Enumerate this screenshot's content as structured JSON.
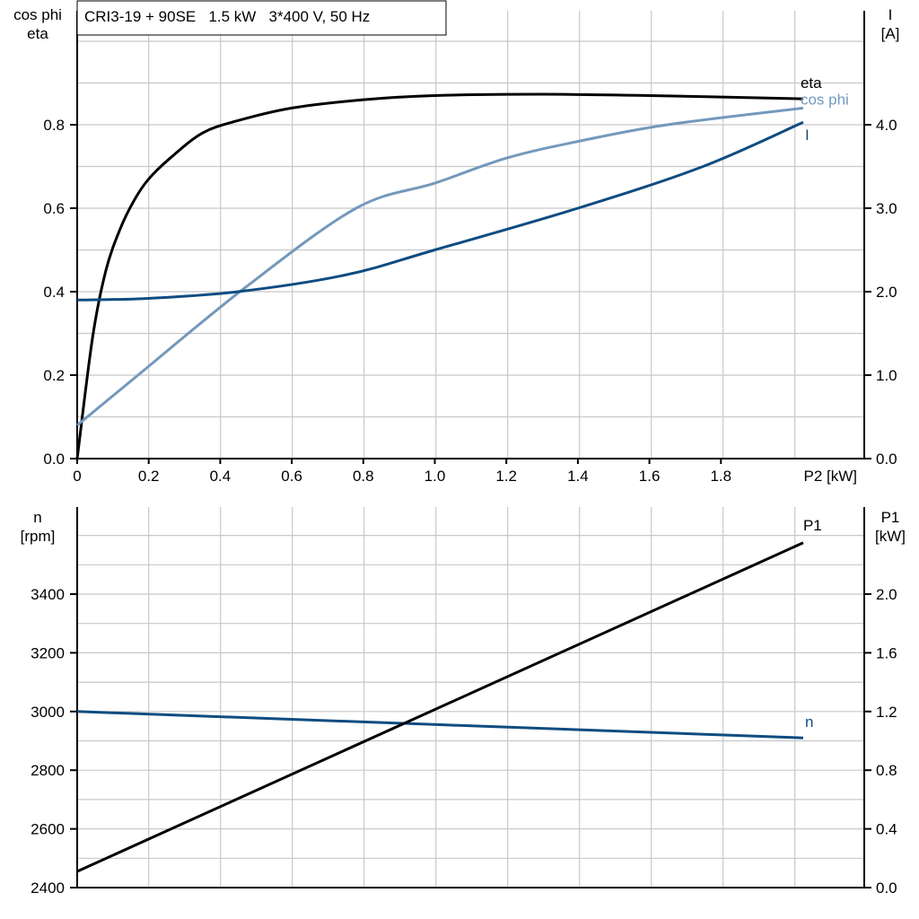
{
  "title": "CRI3-19 + 90SE   1.5 kW   3*400 V, 50 Hz",
  "chart_data": [
    {
      "type": "line",
      "xlabel": "P2 [kW]",
      "ylabel_left": [
        "cos phi",
        "eta"
      ],
      "ylabel_right": [
        "I",
        "[A]"
      ],
      "xlim": [
        0,
        2.2
      ],
      "ylim_left": [
        0,
        1.07
      ],
      "ylim_right": [
        0,
        5.37
      ],
      "x_ticks": [
        "0",
        "0.2",
        "0.4",
        "0.6",
        "0.8",
        "1.0",
        "1.2",
        "1.4",
        "1.6",
        "1.8"
      ],
      "y_ticks_left": [
        "0.0",
        "0.2",
        "0.4",
        "0.6",
        "0.8"
      ],
      "y_ticks_right": [
        "0.0",
        "1.0",
        "2.0",
        "3.0",
        "4.0"
      ],
      "grid": true,
      "series": [
        {
          "name": "eta",
          "axis": "left",
          "color": "#000000",
          "x": [
            0,
            0.043,
            0.08,
            0.12,
            0.16,
            0.2,
            0.26,
            0.35,
            0.45,
            0.6,
            0.8,
            1.0,
            1.3,
            1.6,
            2.03
          ],
          "y": [
            0,
            0.29,
            0.45,
            0.55,
            0.62,
            0.67,
            0.72,
            0.78,
            0.81,
            0.84,
            0.86,
            0.87,
            0.873,
            0.87,
            0.862
          ]
        },
        {
          "name": "cos phi",
          "axis": "left",
          "color": "#7399bb",
          "x": [
            0,
            0.17,
            0.47,
            0.78,
            1.0,
            1.2,
            1.4,
            1.65,
            2.03
          ],
          "y": [
            0.08,
            0.2,
            0.41,
            0.6,
            0.66,
            0.72,
            0.76,
            0.8,
            0.84
          ]
        },
        {
          "name": "I",
          "axis": "right",
          "color": "#0f4c81",
          "x": [
            0,
            0.2,
            0.45,
            0.75,
            1.0,
            1.4,
            1.75,
            2.03
          ],
          "y": [
            1.9,
            1.92,
            2.0,
            2.2,
            2.5,
            3.0,
            3.5,
            4.03
          ]
        }
      ]
    },
    {
      "type": "line",
      "ylabel_left": [
        "n",
        "[rpm]"
      ],
      "ylabel_right": [
        "P1",
        "[kW]"
      ],
      "xlim": [
        0,
        2.2
      ],
      "ylim_left": [
        2400,
        3697
      ],
      "ylim_right": [
        0,
        2.36
      ],
      "y_ticks_left": [
        "2400",
        "2600",
        "2800",
        "3000",
        "3200",
        "3400"
      ],
      "y_ticks_right": [
        "0.0",
        "0.4",
        "0.8",
        "1.2",
        "1.6",
        "2.0"
      ],
      "grid": true,
      "series": [
        {
          "name": "n",
          "axis": "left",
          "color": "#0f4c81",
          "x": [
            0,
            2.03
          ],
          "y": [
            3000,
            2910
          ]
        },
        {
          "name": "P1",
          "axis": "right",
          "color": "#000000",
          "x": [
            0,
            2.03
          ],
          "y": [
            0.11,
            2.35
          ]
        }
      ]
    }
  ]
}
